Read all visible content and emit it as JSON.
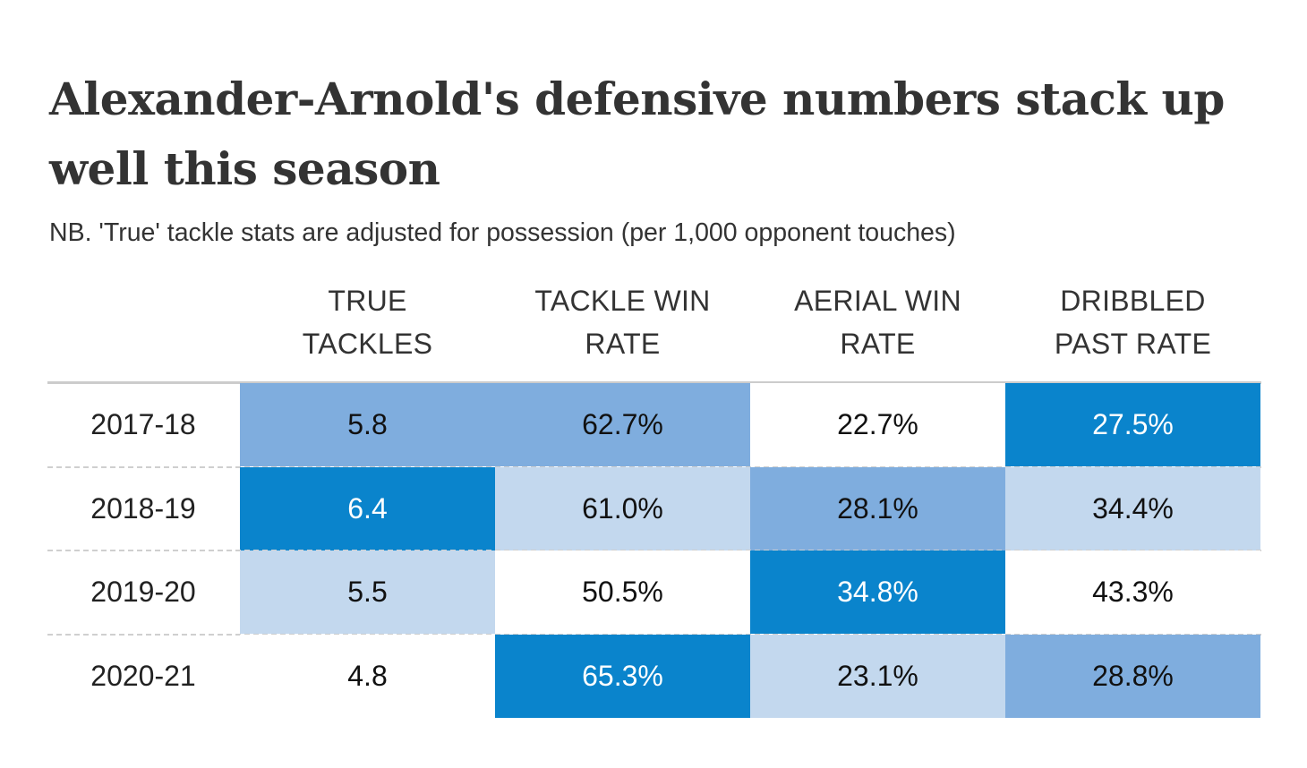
{
  "chart_data": {
    "type": "table",
    "title": "Alexander-Arnold's defensive numbers stack up well this season",
    "subtitle": "NB. 'True' tackle stats are adjusted for possession (per 1,000 opponent touches)",
    "columns": [
      {
        "line1": "TRUE",
        "line2": "TACKLES"
      },
      {
        "line1": "TACKLE WIN",
        "line2": "RATE"
      },
      {
        "line1": "AERIAL WIN",
        "line2": "RATE"
      },
      {
        "line1": "DRIBBLED",
        "line2": "PAST RATE"
      }
    ],
    "rows": [
      {
        "label": "2017-18",
        "values": [
          "5.8",
          "62.7%",
          "22.7%",
          "27.5%"
        ],
        "shade": [
          2,
          2,
          0,
          3
        ]
      },
      {
        "label": "2018-19",
        "values": [
          "6.4",
          "61.0%",
          "28.1%",
          "34.4%"
        ],
        "shade": [
          3,
          1,
          2,
          1
        ]
      },
      {
        "label": "2019-20",
        "values": [
          "5.5",
          "50.5%",
          "34.8%",
          "43.3%"
        ],
        "shade": [
          1,
          0,
          3,
          0
        ]
      },
      {
        "label": "2020-21",
        "values": [
          "4.8",
          "65.3%",
          "23.1%",
          "28.8%"
        ],
        "shade": [
          0,
          3,
          1,
          2
        ]
      }
    ],
    "shade_colors": [
      "#ffffff",
      "#c3d8ee",
      "#7fadde",
      "#0a84cc"
    ],
    "shade_text_colors": [
      "#111111",
      "#111111",
      "#111111",
      "#ffffff"
    ]
  }
}
